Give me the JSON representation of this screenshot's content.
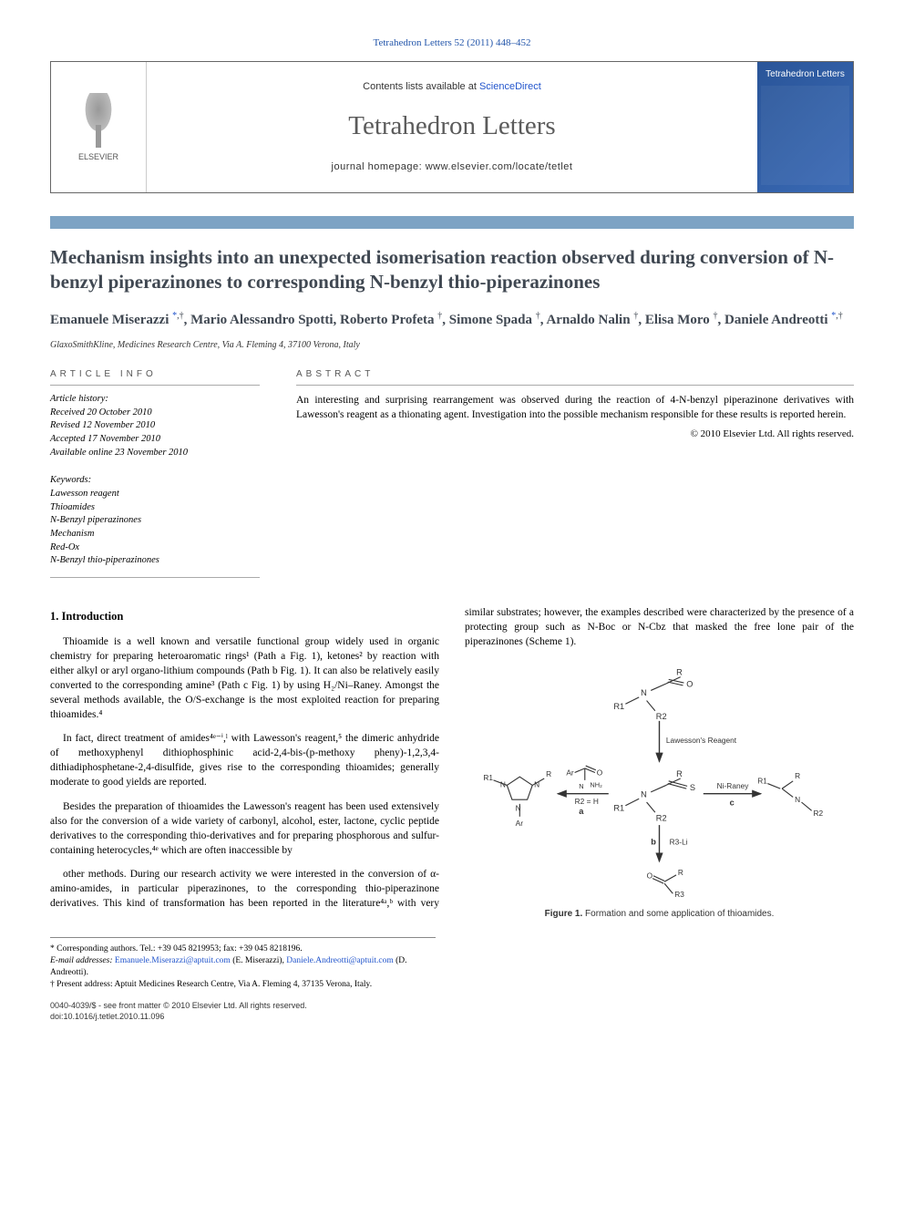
{
  "citation": "Tetrahedron Letters 52 (2011) 448–452",
  "header": {
    "contents_prefix": "Contents lists available at ",
    "contents_link": "ScienceDirect",
    "journal": "Tetrahedron Letters",
    "homepage_prefix": "journal homepage: ",
    "homepage_url": "www.elsevier.com/locate/tetlet",
    "publisher": "ELSEVIER",
    "cover_title": "Tetrahedron Letters"
  },
  "title": "Mechanism insights into an unexpected isomerisation reaction observed during conversion of N-benzyl piperazinones to corresponding N-benzyl thio-piperazinones",
  "authors_html": "Emanuele Miserazzi <sup class='star'>*</sup><sup>,†</sup>, Mario Alessandro Spotti, Roberto Profeta <sup>†</sup>, Simone Spada <sup>†</sup>, Arnaldo Nalin <sup>†</sup>, Elisa Moro <sup>†</sup>, Daniele Andreotti <sup class='star'>*</sup><sup>,†</sup>",
  "affiliation": "GlaxoSmithKline, Medicines Research Centre, Via A. Fleming 4, 37100 Verona, Italy",
  "info": {
    "label": "ARTICLE INFO",
    "history_label": "Article history:",
    "received": "Received 20 October 2010",
    "revised": "Revised 12 November 2010",
    "accepted": "Accepted 17 November 2010",
    "online": "Available online 23 November 2010",
    "keywords_label": "Keywords:",
    "keywords": [
      "Lawesson reagent",
      "Thioamides",
      "N-Benzyl piperazinones",
      "Mechanism",
      "Red-Ox",
      "N-Benzyl thio-piperazinones"
    ]
  },
  "abstract": {
    "label": "ABSTRACT",
    "text": "An interesting and surprising rearrangement was observed during the reaction of 4-N-benzyl piperazinone derivatives with Lawesson's reagent as a thionating agent. Investigation into the possible mechanism responsible for these results is reported herein.",
    "copyright": "© 2010 Elsevier Ltd. All rights reserved."
  },
  "section1_heading": "1. Introduction",
  "para1": "Thioamide is a well known and versatile functional group widely used in organic chemistry for preparing heteroaromatic rings¹ (Path a Fig. 1), ketones² by reaction with either alkyl or aryl organo-lithium compounds (Path b Fig. 1). It can also be relatively easily converted to the corresponding amine³ (Path c Fig. 1) by using H₂/Ni–Raney. Amongst the several methods available, the O/S-exchange is the most exploited reaction for preparing thioamides.⁴",
  "para2": "In fact, direct treatment of amides⁴ᵉ⁻ⁱ,ˡ with Lawesson's reagent,⁵ the dimeric anhydride of methoxyphenyl dithiophosphinic acid-2,4-bis-(p-methoxy pheny)-1,2,3,4-dithiadiphosphetane-2,4-disulfide, gives rise to the corresponding thioamides; generally moderate to good yields are reported.",
  "para3": "Besides the preparation of thioamides the Lawesson's reagent has been used extensively also for the conversion of a wide variety of carbonyl, alcohol, ester, lactone, cyclic peptide derivatives to the corresponding thio-derivatives and for preparing phosphorous and sulfur-containing heterocycles,⁴ᵉ which are often inaccessible by",
  "para4": "other methods. During our research activity we were interested in the conversion of α-amino-amides, in particular piperazinones, to the corresponding thio-piperazinone derivatives. This kind of transformation has been reported in the literature⁴ᵃ,ᵇ with very similar substrates; however, the examples described were characterized by the presence of a protecting group such as N-Boc or N-Cbz that masked the free lone pair of the piperazinones (Scheme 1).",
  "figure": {
    "caption_bold": "Figure 1.",
    "caption_rest": " Formation and some application of thioamides.",
    "labels": {
      "lawesson": "Lawesson's Reagent",
      "niraney": "Ni-Raney",
      "r3li": "R3-Li",
      "r2h": "R2 = H",
      "path_a": "a",
      "path_b": "b",
      "path_c": "c",
      "R": "R",
      "R1": "R1",
      "R2": "R2",
      "R3": "R3",
      "O": "O",
      "S": "S",
      "N": "N",
      "NH2": "NH₂",
      "Ar": "Ar"
    },
    "colors": {
      "stroke": "#333333",
      "text": "#333333",
      "bg": "#ffffff"
    }
  },
  "footnotes": {
    "corresponding": "* Corresponding authors. Tel.: +39 045 8219953; fax: +39 045 8218196.",
    "email_label": "E-mail addresses: ",
    "email1": "Emanuele.Miserazzi@aptuit.com",
    "email1_who": " (E. Miserazzi), ",
    "email2": "Daniele.Andreotti@aptuit.com",
    "email2_who": " (D. Andreotti).",
    "present": "† Present address: Aptuit Medicines Research Centre, Via A. Fleming 4, 37135 Verona, Italy."
  },
  "footer": {
    "issn": "0040-4039/$ - see front matter © 2010 Elsevier Ltd. All rights reserved.",
    "doi": "doi:10.1016/j.tetlet.2010.11.096"
  }
}
